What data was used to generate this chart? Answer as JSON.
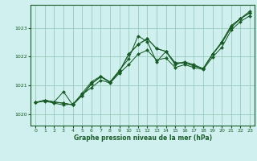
{
  "title": "Graphe pression niveau de la mer (hPa)",
  "background_color": "#cff0ee",
  "grid_color": "#99ccbb",
  "line_color": "#1a5c28",
  "marker_color": "#1a5c28",
  "xlim": [
    -0.5,
    23.5
  ],
  "ylim": [
    1019.6,
    1023.8
  ],
  "yticks": [
    1020,
    1021,
    1022,
    1023
  ],
  "xticks": [
    0,
    1,
    2,
    3,
    4,
    5,
    6,
    7,
    8,
    9,
    10,
    11,
    12,
    13,
    14,
    15,
    16,
    17,
    18,
    19,
    20,
    21,
    22,
    23
  ],
  "series": [
    {
      "y": [
        1020.4,
        1020.45,
        1020.38,
        1020.32,
        1020.35,
        1020.68,
        1020.92,
        1021.18,
        1021.08,
        1021.42,
        1021.72,
        1022.08,
        1022.22,
        1021.88,
        1021.95,
        1021.62,
        1021.72,
        1021.62,
        1021.55,
        1021.98,
        1022.32,
        1022.92,
        1023.22,
        1023.42
      ],
      "smooth": false
    },
    {
      "y": [
        1020.4,
        1020.48,
        1020.42,
        1020.78,
        1020.32,
        1020.72,
        1021.12,
        1021.32,
        1021.12,
        1021.52,
        1021.92,
        1022.72,
        1022.52,
        1021.82,
        1022.18,
        1021.72,
        1021.82,
        1021.72,
        1021.58,
        1022.08,
        1022.52,
        1023.08,
        1023.32,
        1023.58
      ],
      "smooth": false
    },
    {
      "y": [
        1020.4,
        1020.48,
        1020.42,
        1020.38,
        1020.32,
        1020.65,
        1021.05,
        1021.3,
        1021.1,
        1021.48,
        1022.08,
        1022.42,
        1022.62,
        1022.28,
        1022.18,
        1021.78,
        1021.78,
        1021.68,
        1021.58,
        1022.08,
        1022.48,
        1023.02,
        1023.32,
        1023.52
      ],
      "smooth": false
    },
    {
      "y": [
        1020.4,
        1020.48,
        1020.42,
        1020.38,
        1020.32,
        1020.65,
        1021.05,
        1021.3,
        1021.1,
        1021.48,
        1022.08,
        1022.42,
        1022.62,
        1022.28,
        1022.18,
        1021.78,
        1021.78,
        1021.68,
        1021.58,
        1022.08,
        1022.48,
        1023.02,
        1023.32,
        1023.52
      ],
      "smooth": true
    }
  ]
}
